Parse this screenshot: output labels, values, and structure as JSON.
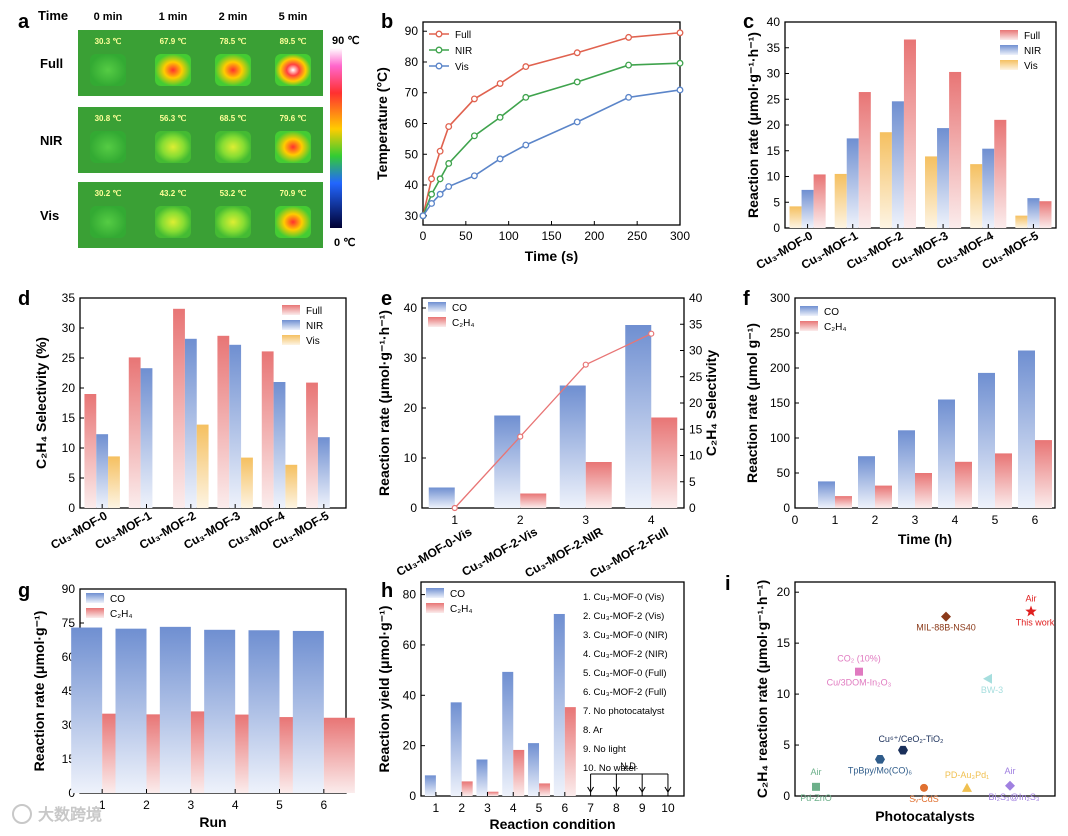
{
  "panel_labels": [
    "a",
    "b",
    "c",
    "d",
    "e",
    "f",
    "g",
    "h",
    "i"
  ],
  "panel_a": {
    "header_time": "Time",
    "time_labels": [
      "0 min",
      "1 min",
      "2 min",
      "5 min"
    ],
    "rows": [
      {
        "label": "Full",
        "temps": [
          "30.3 ℃",
          "67.9 ℃",
          "78.5 ℃",
          "89.5 ℃"
        ]
      },
      {
        "label": "NIR",
        "temps": [
          "30.8 ℃",
          "56.3 ℃",
          "68.5 ℃",
          "79.6 ℃"
        ]
      },
      {
        "label": "Vis",
        "temps": [
          "30.2 ℃",
          "43.2 ℃",
          "53.2 ℃",
          "70.9 ℃"
        ]
      }
    ],
    "colorbar_max": "90 ℃",
    "colorbar_min": "0 ℃"
  },
  "chart_data": [
    {
      "id": "b",
      "type": "line",
      "xlabel": "Time (s)",
      "ylabel": "Temperature (°C)",
      "xlim": [
        0,
        300
      ],
      "ylim": [
        27,
        93
      ],
      "xticks": [
        "0",
        "50",
        "100",
        "150",
        "200",
        "250",
        "300"
      ],
      "yticks": [
        "30",
        "40",
        "50",
        "60",
        "70",
        "80",
        "90"
      ],
      "x": [
        0,
        10,
        20,
        30,
        60,
        90,
        120,
        180,
        240,
        300
      ],
      "series": [
        {
          "name": "Full",
          "color": "#e0624f",
          "values": [
            30,
            42,
            51,
            59,
            68,
            73,
            78.5,
            83,
            88,
            89.5
          ]
        },
        {
          "name": "NIR",
          "color": "#3fa34d",
          "values": [
            30,
            37,
            42,
            47,
            56,
            62,
            68.5,
            73.5,
            79,
            79.6
          ]
        },
        {
          "name": "Vis",
          "color": "#5b85c9",
          "values": [
            30,
            34,
            37,
            39.5,
            43,
            48.5,
            53,
            60.5,
            68.5,
            70.9
          ]
        }
      ],
      "legend_position": "top-left"
    },
    {
      "id": "c",
      "type": "bar",
      "ylabel": "Reaction rate (μmol·g⁻¹·h⁻¹)",
      "ylim": [
        0,
        40
      ],
      "yticks": [
        "0",
        "5",
        "10",
        "15",
        "20",
        "25",
        "30",
        "35",
        "40"
      ],
      "categories": [
        "Cu₃-MOF-0",
        "Cu₃-MOF-1",
        "Cu₃-MOF-2",
        "Cu₃-MOF-3",
        "Cu₃-MOF-4",
        "Cu₃-MOF-5"
      ],
      "series": [
        {
          "name": "Vis",
          "color": "#f5c060",
          "values": [
            4.2,
            10.5,
            18.6,
            13.9,
            12.4,
            2.4
          ]
        },
        {
          "name": "NIR",
          "color": "#6f8fd1",
          "values": [
            7.4,
            17.4,
            24.6,
            19.4,
            15.4,
            5.8
          ]
        },
        {
          "name": "Full",
          "color": "#e87575",
          "values": [
            10.4,
            26.4,
            36.6,
            30.3,
            21,
            5.2
          ]
        }
      ],
      "legend_position": "top-right"
    },
    {
      "id": "d",
      "type": "bar",
      "ylabel": "C₂H₄ Selectivity (%)",
      "ylim": [
        0,
        35
      ],
      "yticks": [
        "0",
        "5",
        "10",
        "15",
        "20",
        "25",
        "30",
        "35"
      ],
      "categories": [
        "Cu₃-MOF-0",
        "Cu₃-MOF-1",
        "Cu₃-MOF-2",
        "Cu₃-MOF-3",
        "Cu₃-MOF-4",
        "Cu₃-MOF-5"
      ],
      "series": [
        {
          "name": "Full",
          "color": "#e87575",
          "values": [
            19,
            25.1,
            33.2,
            28.7,
            26.1,
            20.9
          ]
        },
        {
          "name": "NIR",
          "color": "#6f8fd1",
          "values": [
            12.3,
            23.3,
            28.2,
            27.2,
            21,
            11.8
          ]
        },
        {
          "name": "Vis",
          "color": "#f5c060",
          "values": [
            8.6,
            null,
            13.9,
            8.4,
            7.2,
            null
          ]
        }
      ],
      "legend_position": "top-right"
    },
    {
      "id": "e",
      "type": "bar",
      "ylabel": "Reaction rate (μmol·g⁻¹·h⁻¹)",
      "ylabel2": "C₂H₄ Selectivity",
      "ylim": [
        0,
        42
      ],
      "ylim2": [
        0,
        40
      ],
      "yticks": [
        "0",
        "10",
        "20",
        "30",
        "40"
      ],
      "yticks2": [
        "0",
        "5",
        "10",
        "15",
        "20",
        "25",
        "30",
        "35",
        "40"
      ],
      "numbers": [
        "1",
        "2",
        "3",
        "4"
      ],
      "categories": [
        "Cu₃-MOF-0-Vis",
        "Cu₃-MOF-2-Vis",
        "Cu₃-MOF-2-NIR",
        "Cu₃-MOF-2-Full"
      ],
      "series": [
        {
          "name": "CO",
          "color": "#6f8fd1",
          "values": [
            4.1,
            18.5,
            24.5,
            36.6
          ]
        },
        {
          "name": "C₂H₄",
          "color": "#e87575",
          "values": [
            0,
            2.9,
            9.2,
            18.1
          ]
        }
      ],
      "line": {
        "color": "#e87575",
        "values": [
          0,
          13.6,
          27.3,
          33.2
        ]
      },
      "legend_position": "top-left"
    },
    {
      "id": "f",
      "type": "bar",
      "xlabel": "Time (h)",
      "ylabel": "Reaction rate (μmol g⁻¹)",
      "ylim": [
        0,
        300
      ],
      "yticks": [
        "0",
        "50",
        "100",
        "150",
        "200",
        "250",
        "300"
      ],
      "xticks": [
        "0",
        "1",
        "2",
        "3",
        "4",
        "5",
        "6"
      ],
      "categories": [
        "1",
        "2",
        "3",
        "4",
        "5",
        "6"
      ],
      "series": [
        {
          "name": "CO",
          "color": "#6f8fd1",
          "values": [
            38,
            74,
            111,
            155,
            193,
            225
          ]
        },
        {
          "name": "C₂H₄",
          "color": "#e87575",
          "values": [
            17,
            32,
            50,
            66,
            78,
            97
          ]
        }
      ],
      "legend_position": "top-left"
    },
    {
      "id": "g",
      "type": "bar",
      "xlabel": "Run",
      "ylabel": "Reaction rate (μmol·g⁻¹)",
      "ylim": [
        0,
        90
      ],
      "yticks": [
        "0",
        "15",
        "30",
        "45",
        "60",
        "75",
        "90"
      ],
      "categories": [
        "1",
        "2",
        "3",
        "4",
        "5",
        "6"
      ],
      "series": [
        {
          "name": "CO",
          "color": "#6f8fd1",
          "values": [
            73,
            72.5,
            73.3,
            72,
            71.8,
            71.5
          ]
        },
        {
          "name": "C₂H₄",
          "color": "#e87575",
          "values": [
            35,
            34.7,
            36,
            34.6,
            33.5,
            33.2
          ]
        }
      ],
      "legend_position": "top-left"
    },
    {
      "id": "h",
      "type": "bar",
      "xlabel": "Reaction condition",
      "ylabel": "Reaction yield (μmol·g⁻¹)",
      "ylim": [
        0,
        85
      ],
      "yticks": [
        "0",
        "20",
        "40",
        "60",
        "80"
      ],
      "categories": [
        "1",
        "2",
        "3",
        "4",
        "5",
        "6",
        "7",
        "8",
        "9",
        "10"
      ],
      "series": [
        {
          "name": "CO",
          "color": "#6f8fd1",
          "values": [
            8.2,
            37.2,
            14.5,
            49.3,
            21,
            72.3,
            0,
            0,
            0,
            0
          ]
        },
        {
          "name": "C₂H₄",
          "color": "#e87575",
          "values": [
            0,
            5.8,
            1.7,
            18.3,
            5,
            35.3,
            0,
            0,
            0,
            0
          ]
        }
      ],
      "conditions": [
        "1. Cu₃-MOF-0 (Vis)",
        "2. Cu₃-MOF-2 (Vis)",
        "3. Cu₃-MOF-0 (NIR)",
        "4. Cu₃-MOF-2 (NIR)",
        "5. Cu₃-MOF-0 (Full)",
        "6. Cu₃-MOF-2 (Full)",
        "7. No photocatalyst",
        "8. Ar",
        "9. No light",
        "10. No water"
      ],
      "nd_label": "N.D.",
      "legend_position": "top-left"
    },
    {
      "id": "i",
      "type": "scatter",
      "xlabel": "Photocatalysts",
      "ylabel": "C₂H₄ reaction rate (μmol·g⁻¹·h⁻¹)",
      "ylim": [
        0,
        21
      ],
      "yticks": [
        "0",
        "5",
        "10",
        "15",
        "20"
      ],
      "points": [
        {
          "name": "MIL-88B-NS40",
          "y": 17.6,
          "color": "#8b3a1a",
          "marker": "diamond"
        },
        {
          "name": "This work",
          "note": "Air",
          "y": 18.1,
          "color": "#e02020",
          "marker": "star"
        },
        {
          "name": "Cu/3DOM-In₂O₃",
          "note": "CO₂ (10%)",
          "y": 12.2,
          "color": "#e07ac0",
          "marker": "square"
        },
        {
          "name": "BW-3",
          "y": 11.5,
          "color": "#a6dede",
          "marker": "triangle-left"
        },
        {
          "name": "Cu⁶⁺/CeO₂-TiO₂",
          "y": 4.5,
          "color": "#1a2f5a",
          "marker": "hexagon"
        },
        {
          "name": "TpBpy/Mo(CO)₆",
          "y": 3.6,
          "color": "#2f5c8a",
          "marker": "hexagon"
        },
        {
          "name": "Pd-ZnO",
          "note": "Air",
          "y": 0.9,
          "color": "#6cb08a",
          "marker": "square"
        },
        {
          "name": "Sᵥ-CdS",
          "y": 0.8,
          "color": "#e07030",
          "marker": "circle"
        },
        {
          "name": "PD-Au₃Pd₁",
          "y": 0.8,
          "color": "#f0c050",
          "marker": "triangle"
        },
        {
          "name": "Bi₂S₃@In₂S₃",
          "note": "Air",
          "y": 1.0,
          "color": "#a080e0",
          "marker": "diamond"
        }
      ]
    }
  ],
  "watermark": "大数跨境"
}
